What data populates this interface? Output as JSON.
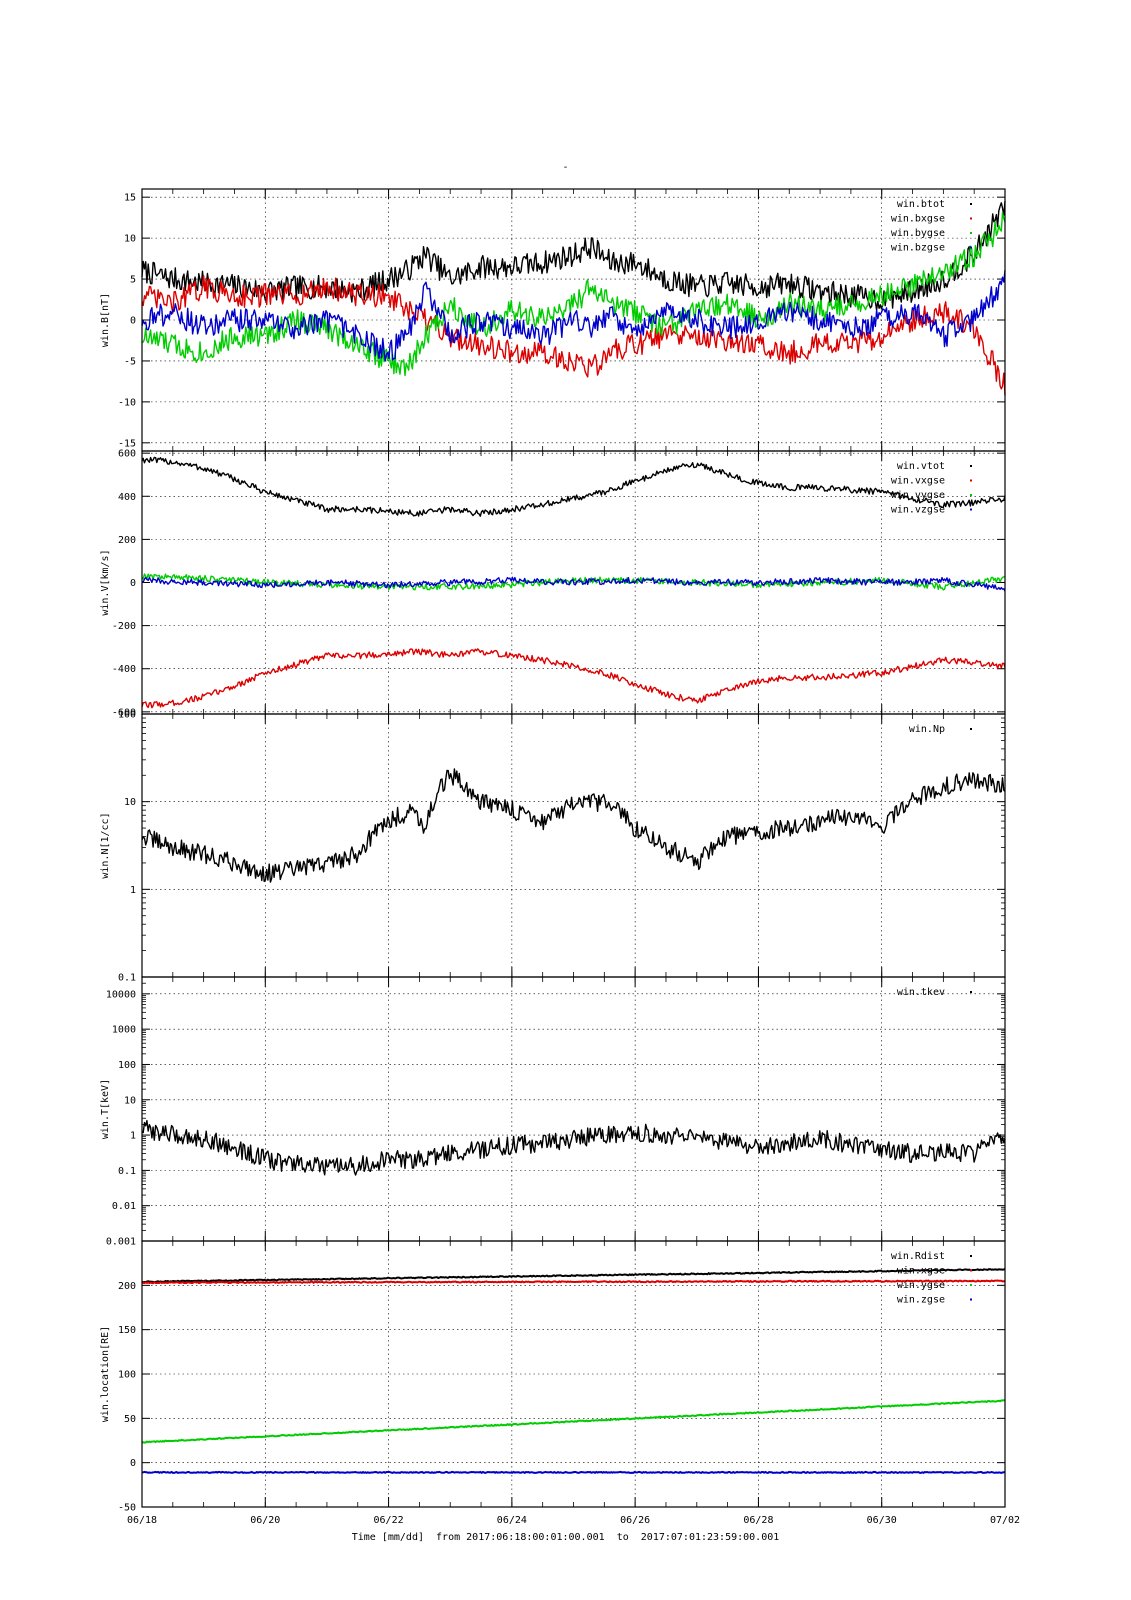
{
  "page": {
    "title": "-",
    "xlabel_prefix": "Time [mm/dd]",
    "from_label": "from",
    "from_value": "2017:06:18:00:01:00.001",
    "to_label": "to",
    "to_value": "2017:07:01:23:59:00.001"
  },
  "colors": {
    "black": "#000000",
    "red": "#dd0000",
    "green": "#00cc00",
    "blue": "#0000cc"
  },
  "x_axis": {
    "xlim": [
      0,
      14
    ],
    "ticks": [
      0,
      2,
      4,
      6,
      8,
      10,
      12,
      14
    ],
    "tick_labels": [
      "06/18",
      "06/20",
      "06/22",
      "06/24",
      "06/26",
      "06/28",
      "06/30",
      "07/02"
    ],
    "grid": true
  },
  "chart_data": [
    {
      "type": "scatter",
      "ylabel": "win.B[nT]",
      "ylim": [
        -16,
        16
      ],
      "yscale": "linear",
      "yticks": [
        -15,
        -10,
        -5,
        0,
        5,
        10,
        15
      ],
      "ytick_labels": [
        "-15",
        "-10",
        "-5",
        "0",
        "5",
        "10",
        "15"
      ],
      "legend_position": "top-right",
      "series": [
        {
          "name": "win.btot",
          "color": "black",
          "x": [
            0,
            0.5,
            1,
            1.5,
            2,
            2.5,
            3,
            3.5,
            4,
            4.3,
            4.6,
            5,
            5.5,
            6,
            6.5,
            7,
            7.3,
            7.6,
            8,
            8.5,
            9,
            9.5,
            10,
            10.5,
            11,
            11.5,
            12,
            12.5,
            13,
            13.5,
            14
          ],
          "y": [
            6,
            5,
            4.5,
            4.2,
            3.5,
            4,
            4,
            3.5,
            5,
            6,
            8,
            5,
            6.5,
            6.5,
            7,
            8,
            9,
            7,
            7,
            5,
            4,
            4.5,
            4,
            4.5,
            3.5,
            3,
            2.5,
            3.5,
            5,
            8,
            14
          ]
        },
        {
          "name": "win.bxgse",
          "color": "red",
          "x": [
            0,
            0.5,
            1,
            1.5,
            2,
            2.5,
            3,
            3.5,
            4,
            4.3,
            4.6,
            5,
            5.5,
            6,
            6.5,
            7,
            7.3,
            7.6,
            8,
            8.5,
            9,
            9.5,
            10,
            10.5,
            11,
            11.5,
            12,
            12.5,
            13,
            13.5,
            14
          ],
          "y": [
            3,
            2,
            4,
            3,
            3,
            3,
            4,
            3,
            3,
            1,
            0,
            -2,
            -3,
            -4,
            -4,
            -5,
            -6,
            -4,
            -3,
            -2,
            -2,
            -3,
            -3,
            -4,
            -3,
            -3,
            -2,
            0,
            1,
            -1,
            -8
          ]
        },
        {
          "name": "win.bygse",
          "color": "green",
          "x": [
            0,
            0.5,
            1,
            1.5,
            2,
            2.5,
            3,
            3.5,
            4,
            4.3,
            4.6,
            5,
            5.5,
            6,
            6.5,
            7,
            7.3,
            7.6,
            8,
            8.5,
            9,
            9.5,
            10,
            10.5,
            11,
            11.5,
            12,
            12.5,
            13,
            13.5,
            14
          ],
          "y": [
            -2,
            -3,
            -4,
            -2,
            -2,
            0,
            -1,
            -3,
            -5,
            -6,
            -2,
            2,
            -1,
            1,
            0,
            2,
            4,
            2,
            1,
            -1,
            1,
            2,
            0,
            2,
            1,
            2,
            3,
            4,
            6,
            8,
            12
          ]
        },
        {
          "name": "win.bzgse",
          "color": "blue",
          "x": [
            0,
            0.5,
            1,
            1.5,
            2,
            2.5,
            3,
            3.5,
            4,
            4.3,
            4.6,
            5,
            5.5,
            6,
            6.5,
            7,
            7.3,
            7.6,
            8,
            8.5,
            9,
            9.5,
            10,
            10.5,
            11,
            11.5,
            12,
            12.5,
            13,
            13.5,
            14
          ],
          "y": [
            0,
            1,
            -1,
            0,
            0,
            -1,
            0,
            -2,
            -4,
            -2,
            4,
            -2,
            0,
            -1,
            -2,
            0,
            -1,
            1,
            -2,
            1,
            0,
            -1,
            0,
            1,
            0,
            -1,
            0,
            1,
            -2,
            0,
            5
          ]
        }
      ]
    },
    {
      "type": "scatter",
      "ylabel": "win.V[km/s]",
      "ylim": [
        -610,
        610
      ],
      "yscale": "linear",
      "yticks": [
        -600,
        -400,
        -200,
        0,
        200,
        400,
        600
      ],
      "ytick_labels": [
        "-600",
        "-400",
        "-200",
        "0",
        "200",
        "400",
        "600"
      ],
      "legend_position": "top-right",
      "series": [
        {
          "name": "win.vtot",
          "color": "black",
          "x": [
            0,
            0.5,
            1,
            1.5,
            2,
            2.5,
            3,
            3.5,
            4,
            4.5,
            5,
            5.5,
            6,
            6.5,
            7,
            7.5,
            8,
            8.5,
            9,
            9.5,
            10,
            10.5,
            11,
            11.5,
            12,
            12.5,
            13,
            13.5,
            14
          ],
          "y": [
            570,
            560,
            530,
            480,
            420,
            380,
            340,
            340,
            330,
            320,
            340,
            320,
            340,
            360,
            390,
            420,
            470,
            520,
            550,
            500,
            460,
            440,
            440,
            430,
            420,
            390,
            360,
            370,
            390
          ]
        },
        {
          "name": "win.vxgse",
          "color": "red",
          "x": [
            0,
            0.5,
            1,
            1.5,
            2,
            2.5,
            3,
            3.5,
            4,
            4.5,
            5,
            5.5,
            6,
            6.5,
            7,
            7.5,
            8,
            8.5,
            9,
            9.5,
            10,
            10.5,
            11,
            11.5,
            12,
            12.5,
            13,
            13.5,
            14
          ],
          "y": [
            -570,
            -560,
            -530,
            -480,
            -420,
            -380,
            -340,
            -340,
            -330,
            -320,
            -340,
            -320,
            -340,
            -360,
            -390,
            -420,
            -470,
            -520,
            -550,
            -500,
            -460,
            -440,
            -440,
            -430,
            -420,
            -390,
            -360,
            -370,
            -390
          ]
        },
        {
          "name": "win.vygse",
          "color": "green",
          "x": [
            0,
            1,
            2,
            3,
            4,
            5,
            6,
            7,
            8,
            9,
            10,
            11,
            12,
            13,
            14
          ],
          "y": [
            30,
            20,
            0,
            -10,
            -20,
            -20,
            -10,
            10,
            10,
            0,
            -10,
            0,
            10,
            -20,
            20
          ]
        },
        {
          "name": "win.vzgse",
          "color": "blue",
          "x": [
            0,
            1,
            2,
            3,
            4,
            5,
            6,
            7,
            8,
            9,
            10,
            11,
            12,
            13,
            14
          ],
          "y": [
            10,
            0,
            -10,
            0,
            -10,
            0,
            10,
            0,
            10,
            0,
            0,
            10,
            0,
            10,
            -30
          ]
        }
      ]
    },
    {
      "type": "scatter",
      "ylabel": "win.N[1/cc]",
      "ylim": [
        0.1,
        100
      ],
      "yscale": "log",
      "yticks": [
        0.1,
        1,
        10,
        100
      ],
      "ytick_labels": [
        "0.1",
        "1",
        "10",
        "100"
      ],
      "legend_position": "top-right",
      "series": [
        {
          "name": "win.Np",
          "color": "black",
          "x": [
            0,
            0.5,
            1,
            1.5,
            2,
            2.5,
            3,
            3.5,
            4,
            4.4,
            4.6,
            5,
            5.5,
            6,
            6.5,
            7,
            7.5,
            8,
            8.5,
            9,
            9.5,
            10,
            10.5,
            11,
            11.5,
            12,
            12.5,
            13,
            13.5,
            14
          ],
          "y": [
            4,
            3,
            2.5,
            2,
            1.5,
            1.7,
            2,
            2.5,
            6,
            8,
            5,
            20,
            10,
            8,
            6,
            9,
            10,
            5,
            3,
            2,
            4,
            4.5,
            5,
            6,
            7,
            5,
            10,
            15,
            18,
            15
          ]
        }
      ]
    },
    {
      "type": "scatter",
      "ylabel": "win.T[keV]",
      "ylim": [
        0.001,
        30000
      ],
      "yscale": "log",
      "yticks": [
        0.001,
        0.01,
        0.1,
        1,
        10,
        100,
        1000,
        10000
      ],
      "ytick_labels": [
        "0.001",
        "0.01",
        "0.1",
        "1",
        "10",
        "100",
        "1000",
        "10000"
      ],
      "legend_position": "top-right",
      "series": [
        {
          "name": "win.tkev",
          "color": "black",
          "x": [
            0,
            0.5,
            1,
            1.5,
            2,
            2.5,
            3,
            3.5,
            4,
            4.5,
            5,
            5.5,
            6,
            6.5,
            7,
            7.5,
            8,
            8.5,
            9,
            9.5,
            10,
            10.5,
            11,
            11.5,
            12,
            12.5,
            13,
            13.5,
            14
          ],
          "y": [
            1.5,
            1,
            0.8,
            0.4,
            0.2,
            0.15,
            0.12,
            0.13,
            0.2,
            0.2,
            0.3,
            0.4,
            0.5,
            0.6,
            0.8,
            1,
            1.2,
            1,
            0.8,
            0.6,
            0.5,
            0.6,
            0.8,
            0.5,
            0.4,
            0.3,
            0.35,
            0.3,
            0.8
          ]
        }
      ]
    },
    {
      "type": "scatter",
      "ylabel": "win.location[RE]",
      "ylim": [
        -50,
        250
      ],
      "yscale": "linear",
      "yticks": [
        -50,
        0,
        50,
        100,
        150,
        200
      ],
      "ytick_labels": [
        "-50",
        "0",
        "50",
        "100",
        "150",
        "200"
      ],
      "legend_position": "top-right",
      "series": [
        {
          "name": "win.Rdist",
          "color": "black",
          "x": [
            0,
            14
          ],
          "y": [
            204,
            218
          ]
        },
        {
          "name": "win.xgse",
          "color": "red",
          "x": [
            0,
            14
          ],
          "y": [
            203,
            205
          ]
        },
        {
          "name": "win.ygse",
          "color": "green",
          "x": [
            0,
            14
          ],
          "y": [
            23,
            70
          ]
        },
        {
          "name": "win.zgse",
          "color": "blue",
          "x": [
            0,
            14
          ],
          "y": [
            -11,
            -11
          ]
        }
      ]
    }
  ]
}
